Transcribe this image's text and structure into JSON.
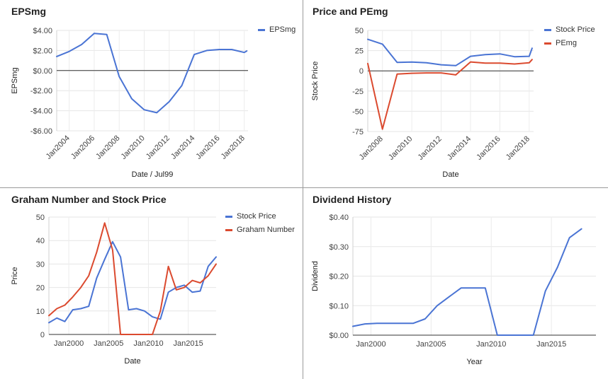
{
  "chart_data": [
    {
      "id": "epsmg",
      "type": "line",
      "title": "EPSmg",
      "xlabel": "Date / Jul99",
      "ylabel": "EPSmg",
      "ylim": [
        -6,
        4
      ],
      "yticks": [
        4,
        2,
        0,
        -2,
        -4,
        -6
      ],
      "ytick_labels": [
        "$4.00",
        "$2.00",
        "$0.00",
        "-$2.00",
        "-$4.00",
        "-$6.00"
      ],
      "xlim": [
        2003.0,
        2018.3
      ],
      "xticks": [
        2004,
        2006,
        2008,
        2010,
        2012,
        2014,
        2016,
        2018
      ],
      "xtick_labels": [
        "Jan2004",
        "Jan2006",
        "Jan2008",
        "Jan2010",
        "Jan2012",
        "Jan2014",
        "Jan2016",
        "Jan2018"
      ],
      "xtick_rotated": true,
      "zero_line": true,
      "legend": "top-right",
      "series": [
        {
          "name": "EPSmg",
          "color": "#4a74d4",
          "x": [
            2003.0,
            2004.0,
            2005.0,
            2006.0,
            2007.0,
            2008.0,
            2009.0,
            2010.0,
            2011.0,
            2012.0,
            2013.0,
            2014.0,
            2015.0,
            2016.0,
            2017.0,
            2018.0,
            2018.2
          ],
          "y": [
            1.4,
            1.9,
            2.6,
            3.7,
            3.6,
            -0.6,
            -2.8,
            -3.9,
            -4.2,
            -3.1,
            -1.5,
            1.6,
            2.0,
            2.1,
            2.1,
            1.8,
            1.95
          ]
        }
      ]
    },
    {
      "id": "price-pemg",
      "type": "line",
      "title": "Price and PEmg",
      "xlabel": "Date",
      "ylabel": "Stock Price",
      "ylim": [
        -75,
        50
      ],
      "yticks": [
        50,
        25,
        0,
        -25,
        -50,
        -75
      ],
      "ytick_labels": [
        "50",
        "25",
        "0",
        "-25",
        "-50",
        "-75"
      ],
      "xlim": [
        2007.0,
        2018.3
      ],
      "xticks": [
        2008,
        2010,
        2012,
        2014,
        2016,
        2018
      ],
      "xtick_labels": [
        "Jan2008",
        "Jan2010",
        "Jan2012",
        "Jan2014",
        "Jan2016",
        "Jan2018"
      ],
      "xtick_rotated": true,
      "zero_line": true,
      "legend": "top-right",
      "series": [
        {
          "name": "Stock Price",
          "color": "#4a74d4",
          "x": [
            2007.0,
            2008.0,
            2009.0,
            2010.0,
            2011.0,
            2012.0,
            2013.0,
            2014.0,
            2015.0,
            2016.0,
            2017.0,
            2018.0,
            2018.2
          ],
          "y": [
            39,
            33,
            10.5,
            10.8,
            10,
            7.5,
            6.5,
            18,
            20,
            21,
            17.5,
            18,
            28
          ]
        },
        {
          "name": "PEmg",
          "color": "#db4a2f",
          "x": [
            2007.0,
            2008.0,
            2009.0,
            2010.0,
            2011.0,
            2012.0,
            2013.0,
            2014.0,
            2015.0,
            2016.0,
            2017.0,
            2018.0,
            2018.2
          ],
          "y": [
            9,
            -72,
            -4,
            -3,
            -2.5,
            -2.5,
            -5,
            11,
            9.5,
            9.5,
            8.5,
            10,
            14
          ]
        }
      ]
    },
    {
      "id": "graham",
      "type": "line",
      "title": "Graham Number and Stock Price",
      "xlabel": "Date",
      "ylabel": "Price",
      "ylim": [
        0,
        50
      ],
      "yticks": [
        50,
        40,
        30,
        20,
        10,
        0
      ],
      "ytick_labels": [
        "50",
        "40",
        "30",
        "20",
        "10",
        "0"
      ],
      "xlim": [
        1997.5,
        2018.5
      ],
      "xticks": [
        2000,
        2005,
        2010,
        2015
      ],
      "xtick_labels": [
        "Jan2000",
        "Jan2005",
        "Jan2010",
        "Jan2015"
      ],
      "xtick_rotated": false,
      "legend": "top-right",
      "series": [
        {
          "name": "Stock Price",
          "color": "#4a74d4",
          "x": [
            1997.5,
            1998.5,
            1999.5,
            2000.5,
            2001.5,
            2002.5,
            2003.5,
            2004.5,
            2005.5,
            2006.5,
            2007.5,
            2008.5,
            2009.5,
            2010.5,
            2011.5,
            2012.5,
            2013.5,
            2014.5,
            2015.5,
            2016.5,
            2017.5,
            2018.5
          ],
          "y": [
            5,
            7,
            5.5,
            10.5,
            11,
            12,
            24,
            32,
            39.5,
            33,
            10.5,
            11,
            10,
            7.5,
            6.5,
            18,
            20,
            21,
            18,
            18.5,
            29,
            33
          ]
        },
        {
          "name": "Graham Number",
          "color": "#db4a2f",
          "x": [
            1997.5,
            1998.5,
            1999.5,
            2000.5,
            2001.5,
            2002.5,
            2003.5,
            2004.5,
            2005.5,
            2006.5,
            2007.5,
            2008.5,
            2009.5,
            2010.5,
            2011.5,
            2012.5,
            2013.5,
            2014.5,
            2015.5,
            2016.5,
            2017.5,
            2018.5
          ],
          "y": [
            8,
            11,
            12.5,
            16,
            20,
            25,
            35,
            47.5,
            36,
            0,
            0,
            0,
            0,
            0,
            10,
            29,
            19,
            20,
            23,
            22,
            25,
            30
          ]
        }
      ]
    },
    {
      "id": "dividend",
      "type": "line",
      "title": "Dividend History",
      "xlabel": "Year",
      "ylabel": "Dividend",
      "ylim": [
        0,
        0.4
      ],
      "yticks": [
        0.4,
        0.3,
        0.2,
        0.1,
        0
      ],
      "ytick_labels": [
        "$0.40",
        "$0.30",
        "$0.20",
        "$0.10",
        "$0.00"
      ],
      "xlim": [
        1998.5,
        2018.7
      ],
      "xticks": [
        2000,
        2005,
        2010,
        2015
      ],
      "xtick_labels": [
        "Jan2000",
        "Jan2005",
        "Jan2010",
        "Jan2015"
      ],
      "xtick_rotated": false,
      "legend": "none",
      "series": [
        {
          "name": "Dividend",
          "color": "#4a74d4",
          "x": [
            1998.5,
            1999.5,
            2000.5,
            2001.5,
            2002.5,
            2003.5,
            2004.5,
            2005.5,
            2006.5,
            2007.5,
            2008.5,
            2009.5,
            2010.5,
            2011.5,
            2012.5,
            2013.5,
            2014.5,
            2015.5,
            2016.5,
            2017.5
          ],
          "y": [
            0.03,
            0.038,
            0.04,
            0.04,
            0.04,
            0.04,
            0.055,
            0.1,
            0.13,
            0.16,
            0.16,
            0.16,
            0,
            0,
            0,
            0,
            0.15,
            0.23,
            0.33,
            0.36
          ]
        }
      ]
    }
  ]
}
